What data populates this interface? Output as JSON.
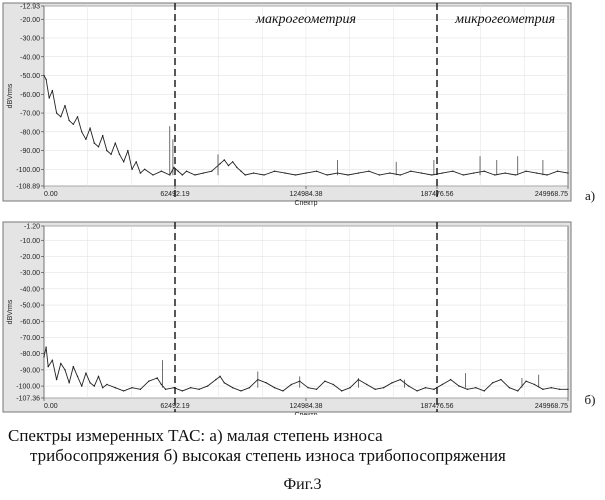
{
  "chart_data": [
    {
      "type": "line",
      "panel_label": "а)",
      "ylabel": "dBVrms",
      "xlabel": "Спектр",
      "xlim": [
        0,
        249968.75
      ],
      "ylim": [
        -108.89,
        -12.93
      ],
      "x_ticks": [
        "0.00",
        "62492.19",
        "124984.38",
        "187476.56",
        "249968.75"
      ],
      "y_ticks": [
        "-12.93",
        "-20.00",
        "-30.00",
        "-40.00",
        "-50.00",
        "-60.00",
        "-70.00",
        "-80.00",
        "-90.00",
        "-100.00",
        "-108.89"
      ],
      "region_boundaries": [
        62492.19,
        187476.56
      ],
      "region_labels": [
        {
          "text": "макрогеометрия",
          "x": 125000,
          "y": -22
        },
        {
          "text": "микрогеометрия",
          "x": 220000,
          "y": -22
        }
      ],
      "series": [
        {
          "x": [
            0,
            1000,
            2500,
            4000,
            6000,
            8000,
            10000,
            12000,
            14000,
            16000,
            18000,
            20000,
            22000,
            24000,
            26000,
            28000,
            30000,
            32000,
            34000,
            36000,
            38000,
            40000,
            42000,
            44000,
            46000,
            48000,
            52000,
            56000,
            60000,
            62000,
            64000,
            66000,
            68000,
            72000,
            76000,
            80000,
            84000,
            86000,
            88000,
            90000,
            92000,
            94000,
            96000,
            100000,
            105000,
            110000,
            115000,
            120000,
            125000,
            130000,
            135000,
            140000,
            145000,
            150000,
            155000,
            160000,
            165000,
            170000,
            175000,
            180000,
            185000,
            190000,
            195000,
            200000,
            205000,
            210000,
            215000,
            220000,
            225000,
            230000,
            235000,
            240000,
            245000,
            249968
          ],
          "y": [
            -50,
            -52,
            -62,
            -58,
            -70,
            -72,
            -66,
            -74,
            -76,
            -72,
            -80,
            -84,
            -78,
            -86,
            -88,
            -82,
            -90,
            -92,
            -86,
            -92,
            -96,
            -90,
            -100,
            -96,
            -102,
            -100,
            -103,
            -101,
            -103,
            -99,
            -101,
            -103,
            -101,
            -103,
            -102,
            -101,
            -97,
            -95,
            -98,
            -96,
            -99,
            -101,
            -103,
            -102,
            -103,
            -101,
            -102,
            -103,
            -102,
            -101,
            -103,
            -102,
            -103,
            -102,
            -101,
            -103,
            -102,
            -103,
            -101,
            -102,
            -103,
            -102,
            -101,
            -103,
            -102,
            -101,
            -103,
            -102,
            -103,
            -101,
            -102,
            -103,
            -101,
            -102
          ]
        }
      ],
      "spikes": [
        {
          "x": 60000,
          "y": -77
        },
        {
          "x": 61500,
          "y": -84
        },
        {
          "x": 83000,
          "y": -92
        },
        {
          "x": 140000,
          "y": -95
        },
        {
          "x": 168000,
          "y": -96
        },
        {
          "x": 186000,
          "y": -95
        },
        {
          "x": 208000,
          "y": -93
        },
        {
          "x": 216000,
          "y": -95
        },
        {
          "x": 226000,
          "y": -93
        },
        {
          "x": 238000,
          "y": -95
        }
      ]
    },
    {
      "type": "line",
      "panel_label": "б)",
      "ylabel": "dBVrms",
      "xlabel": "Спектр",
      "xlim": [
        0,
        249968.75
      ],
      "ylim": [
        -107.36,
        -1.2
      ],
      "x_ticks": [
        "0.00",
        "62492.19",
        "124984.38",
        "187476.56",
        "249968.75"
      ],
      "y_ticks": [
        "-1.20",
        "-10.00",
        "-20.00",
        "-30.00",
        "-40.00",
        "-50.00",
        "-60.00",
        "-70.00",
        "-80.00",
        "-90.00",
        "-100.00",
        "-107.36"
      ],
      "region_boundaries": [
        62492.19,
        187476.56
      ],
      "series": [
        {
          "x": [
            0,
            1000,
            2000,
            4000,
            6000,
            8000,
            10000,
            12000,
            14000,
            16000,
            18000,
            20000,
            22000,
            24000,
            26000,
            28000,
            30000,
            34000,
            38000,
            42000,
            46000,
            50000,
            54000,
            56000,
            58000,
            62000,
            66000,
            70000,
            74000,
            78000,
            82000,
            84000,
            86000,
            90000,
            94000,
            98000,
            102000,
            106000,
            110000,
            114000,
            118000,
            122000,
            126000,
            130000,
            134000,
            138000,
            142000,
            146000,
            150000,
            154000,
            158000,
            162000,
            166000,
            170000,
            174000,
            178000,
            182000,
            186000,
            190000,
            194000,
            198000,
            202000,
            206000,
            210000,
            214000,
            218000,
            222000,
            226000,
            230000,
            234000,
            238000,
            242000,
            246000,
            249968
          ],
          "y": [
            -82,
            -76,
            -88,
            -84,
            -96,
            -86,
            -90,
            -98,
            -88,
            -94,
            -100,
            -92,
            -98,
            -100,
            -94,
            -101,
            -99,
            -101,
            -103,
            -101,
            -102,
            -97,
            -95,
            -99,
            -102,
            -101,
            -103,
            -101,
            -102,
            -100,
            -96,
            -94,
            -98,
            -101,
            -103,
            -101,
            -96,
            -98,
            -101,
            -103,
            -99,
            -97,
            -101,
            -102,
            -97,
            -99,
            -103,
            -101,
            -96,
            -99,
            -102,
            -101,
            -98,
            -96,
            -100,
            -103,
            -101,
            -102,
            -99,
            -96,
            -100,
            -102,
            -101,
            -103,
            -98,
            -96,
            -101,
            -103,
            -97,
            -99,
            -102,
            -101,
            -102,
            -102
          ]
        }
      ],
      "spikes": [
        {
          "x": 56500,
          "y": -84
        },
        {
          "x": 102000,
          "y": -91
        },
        {
          "x": 122000,
          "y": -94
        },
        {
          "x": 150000,
          "y": -95
        },
        {
          "x": 172000,
          "y": -96
        },
        {
          "x": 201000,
          "y": -92
        },
        {
          "x": 228000,
          "y": -95
        },
        {
          "x": 236000,
          "y": -93
        }
      ]
    }
  ],
  "caption": {
    "line1": "Спектры измеренных ТАС: а) малая степень износа",
    "line2": "трибосопряжения б) высокая степень износа трибопосопряжения",
    "figure": "Фиг.3"
  }
}
